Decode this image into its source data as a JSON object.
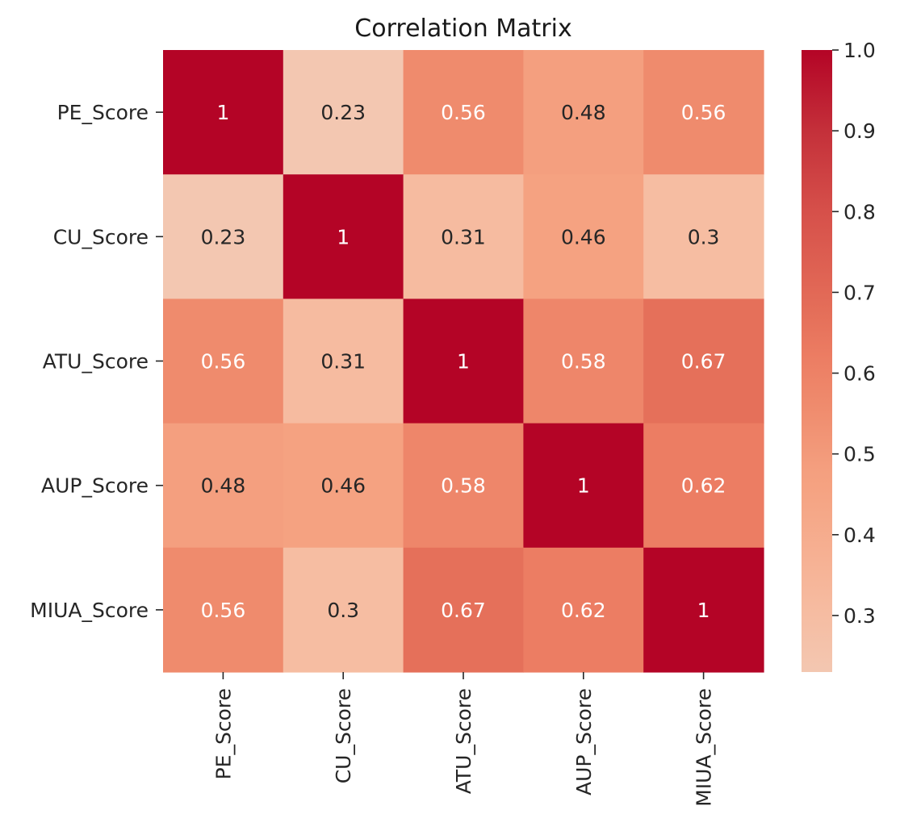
{
  "chart_data": {
    "type": "heatmap",
    "title": "Correlation Matrix",
    "row_labels": [
      "PE_Score",
      "CU_Score",
      "ATU_Score",
      "AUP_Score",
      "MIUA_Score"
    ],
    "col_labels": [
      "PE_Score",
      "CU_Score",
      "ATU_Score",
      "AUP_Score",
      "MIUA_Score"
    ],
    "values": [
      [
        1.0,
        0.23,
        0.56,
        0.48,
        0.56
      ],
      [
        0.23,
        1.0,
        0.31,
        0.46,
        0.3
      ],
      [
        0.56,
        0.31,
        1.0,
        0.58,
        0.67
      ],
      [
        0.48,
        0.46,
        0.58,
        1.0,
        0.62
      ],
      [
        0.56,
        0.3,
        0.67,
        0.62,
        1.0
      ]
    ],
    "annotations": [
      [
        "1",
        "0.23",
        "0.56",
        "0.48",
        "0.56"
      ],
      [
        "0.23",
        "1",
        "0.31",
        "0.46",
        "0.3"
      ],
      [
        "0.56",
        "0.31",
        "1",
        "0.58",
        "0.67"
      ],
      [
        "0.48",
        "0.46",
        "0.58",
        "1",
        "0.62"
      ],
      [
        "0.56",
        "0.3",
        "0.67",
        "0.62",
        "1"
      ]
    ],
    "colorbar": {
      "vmin": 0.23,
      "vmax": 1.0,
      "ticks": [
        0.3,
        0.4,
        0.5,
        0.6,
        0.7,
        0.8,
        0.9,
        1.0
      ],
      "tick_labels": [
        "0.3",
        "0.4",
        "0.5",
        "0.6",
        "0.7",
        "0.8",
        "0.9",
        "1.0"
      ]
    },
    "colormap": "coolwarm (upper half)",
    "colormap_stops": [
      {
        "value": 0.23,
        "color": "#f3c7b1"
      },
      {
        "value": 0.31,
        "color": "#f6bba0"
      },
      {
        "value": 0.46,
        "color": "#f5a281"
      },
      {
        "value": 0.48,
        "color": "#f49f7f"
      },
      {
        "value": 0.56,
        "color": "#ef8b6d"
      },
      {
        "value": 0.62,
        "color": "#ec7d63"
      },
      {
        "value": 0.67,
        "color": "#e5705a"
      },
      {
        "value": 0.8,
        "color": "#d6504a"
      },
      {
        "value": 0.9,
        "color": "#c4303a"
      },
      {
        "value": 1.0,
        "color": "#b40426"
      }
    ],
    "annotation_colors": {
      "light": "#ffffff",
      "dark": "#262626"
    },
    "grid": false
  }
}
